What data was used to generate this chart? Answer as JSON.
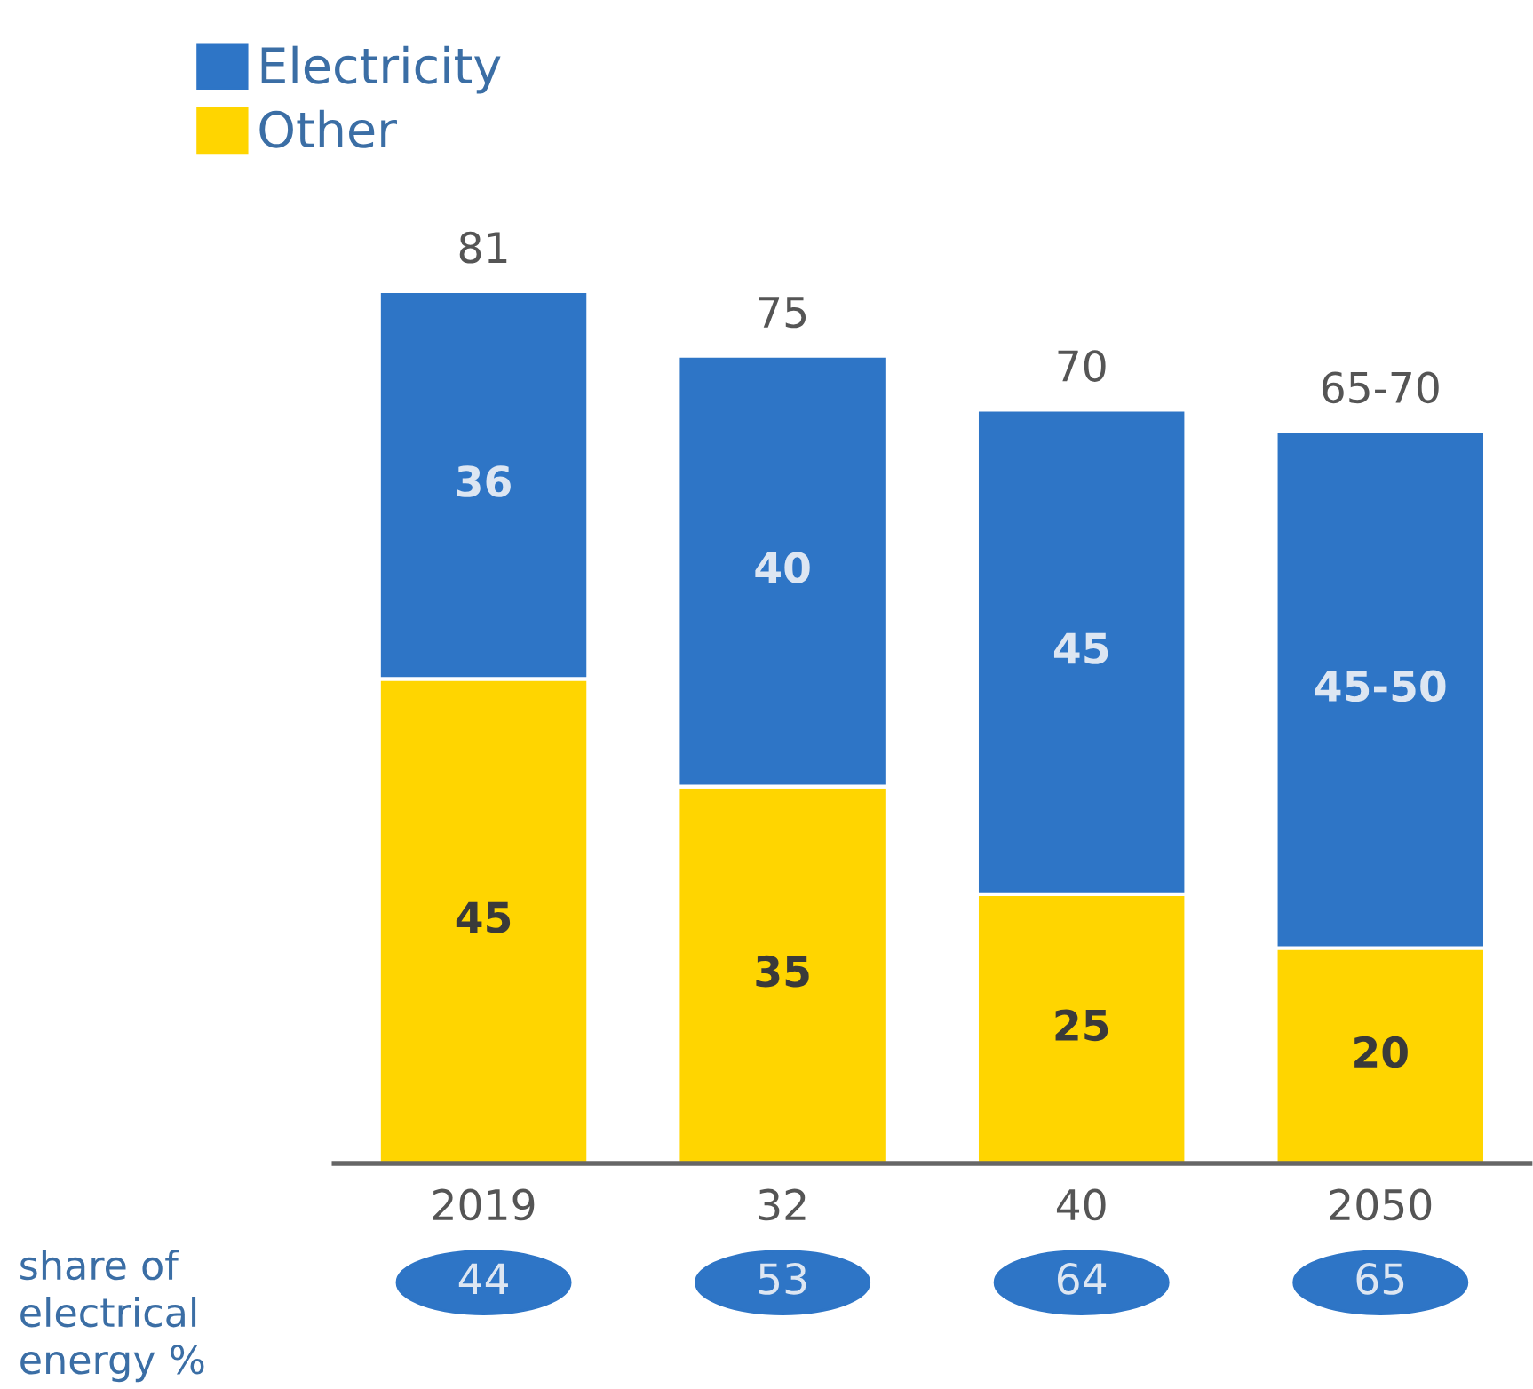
{
  "chart_data": {
    "type": "bar",
    "stacked": true,
    "categories": [
      "2019",
      "32",
      "40",
      "2050"
    ],
    "series": [
      {
        "name": "Other",
        "color": "#ffd500",
        "values": [
          45,
          35,
          25,
          20
        ],
        "value_labels": [
          "45",
          "35",
          "25",
          "20"
        ]
      },
      {
        "name": "Electricity",
        "color": "#2e75c6",
        "values": [
          36,
          40,
          45,
          48
        ],
        "value_labels": [
          "36",
          "40",
          "45",
          "45-50"
        ]
      }
    ],
    "totals": [
      "81",
      "75",
      "70",
      "65-70"
    ],
    "legend": "top left",
    "annotations": [
      "share of\nelectrical\nenergy %",
      "44",
      "53",
      "64",
      "65"
    ]
  }
}
